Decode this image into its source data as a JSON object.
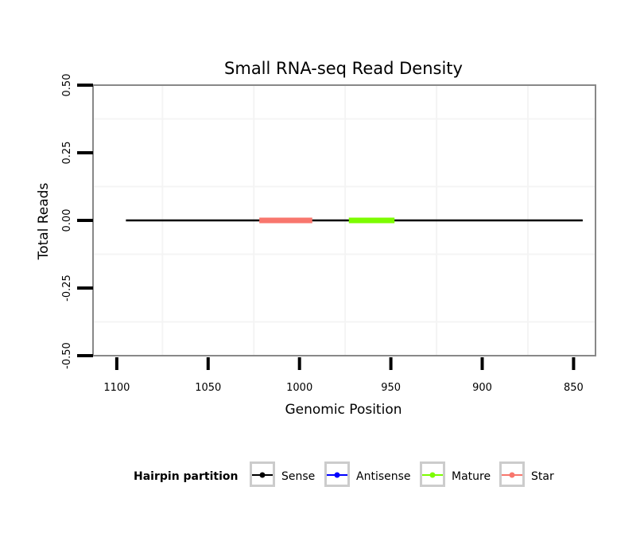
{
  "chart_data": {
    "type": "line",
    "title": "Small RNA-seq Read Density",
    "xlabel": "Genomic Position",
    "ylabel": "Total Reads",
    "x_reversed": true,
    "xlim": [
      1113,
      838
    ],
    "ylim": [
      -0.5,
      0.5
    ],
    "x_ticks": [
      {
        "value": 1100,
        "label": "1100"
      },
      {
        "value": 1050,
        "label": "1050"
      },
      {
        "value": 1000,
        "label": "1000"
      },
      {
        "value": 950,
        "label": "950"
      },
      {
        "value": 900,
        "label": "900"
      },
      {
        "value": 850,
        "label": "850"
      }
    ],
    "y_ticks": [
      {
        "value": 0.5,
        "label": "0.50"
      },
      {
        "value": 0.25,
        "label": "0.25"
      },
      {
        "value": 0.0,
        "label": "0.00"
      },
      {
        "value": -0.25,
        "label": "-0.25"
      },
      {
        "value": -0.5,
        "label": "-0.50"
      }
    ],
    "x_grid_minor": [
      1075,
      1025,
      975,
      925,
      875
    ],
    "y_grid_minor": [
      0.375,
      0.125,
      -0.125,
      -0.375
    ],
    "grid": true,
    "series": [
      {
        "name": "Sense",
        "color": "#000000",
        "x": [
          1095,
          845
        ],
        "y": [
          0,
          0
        ],
        "weight": "thin"
      },
      {
        "name": "Star",
        "color": "#F8766D",
        "x": [
          1022,
          993
        ],
        "y": [
          0,
          0
        ],
        "weight": "thick"
      },
      {
        "name": "Mature",
        "color": "#7CFC00",
        "x": [
          973,
          948
        ],
        "y": [
          0,
          0
        ],
        "weight": "thick"
      }
    ],
    "legend": {
      "title": "Hairpin partition",
      "position": "bottom",
      "items": [
        {
          "name": "Sense",
          "color": "#000000"
        },
        {
          "name": "Antisense",
          "color": "#0000FF"
        },
        {
          "name": "Mature",
          "color": "#7CFC00"
        },
        {
          "name": "Star",
          "color": "#F8766D"
        }
      ]
    }
  }
}
